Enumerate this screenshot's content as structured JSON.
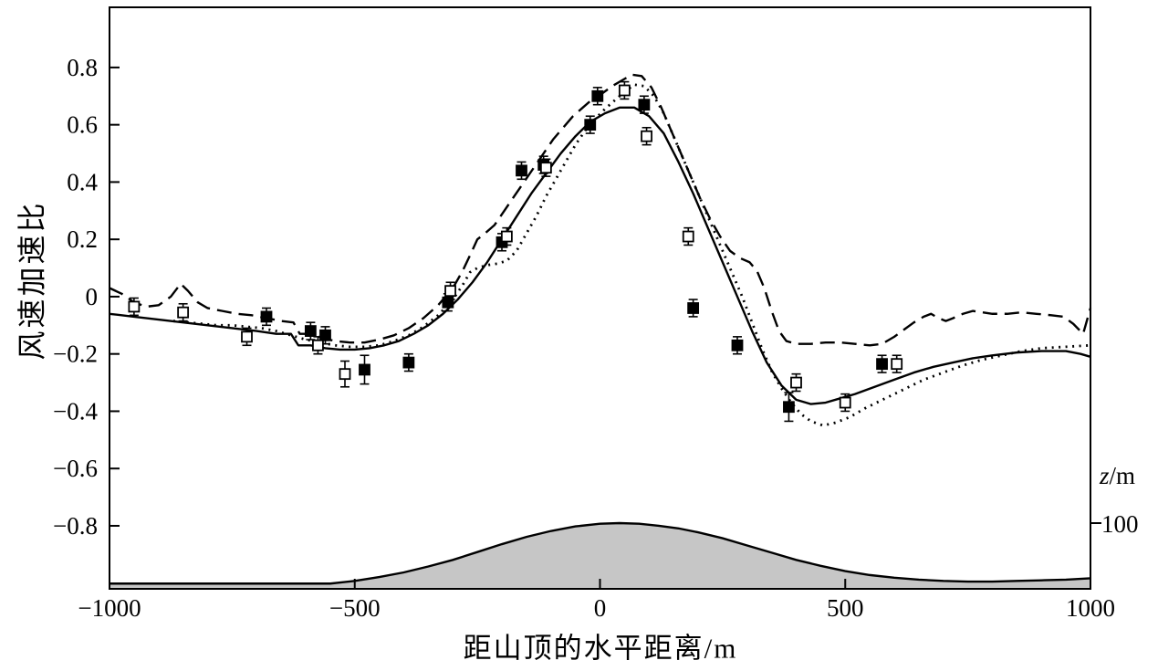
{
  "chart_data": {
    "type": "line",
    "title": "",
    "xlabel": "距山顶的水平距离/m",
    "ylabel": "风速加速比",
    "xlim": [
      -1000,
      1000
    ],
    "ylim": [
      -1.02,
      1.01
    ],
    "grid": false,
    "legend": "none",
    "x_ticks": [
      {
        "value": -1000,
        "label": "−1000"
      },
      {
        "value": -500,
        "label": "−500"
      },
      {
        "value": 0,
        "label": "0"
      },
      {
        "value": 500,
        "label": "500"
      },
      {
        "value": 1000,
        "label": "1000"
      }
    ],
    "y_ticks": [
      {
        "value": 0.8,
        "label": "0.8"
      },
      {
        "value": 0.6,
        "label": "0.6"
      },
      {
        "value": 0.4,
        "label": "0.4"
      },
      {
        "value": 0.2,
        "label": "0.2"
      },
      {
        "value": 0,
        "label": "0"
      },
      {
        "value": -0.2,
        "label": "−0.2"
      },
      {
        "value": -0.4,
        "label": "−0.4"
      },
      {
        "value": -0.6,
        "label": "−0.6"
      },
      {
        "value": -0.8,
        "label": "−0.8"
      }
    ],
    "secondary_axis": {
      "symbol": "z",
      "unit": "/m",
      "ticks": [
        {
          "value": 100,
          "label": "100"
        }
      ]
    },
    "series": [
      {
        "name": "solid-line",
        "type": "line",
        "line_style": "solid",
        "color": "#000000",
        "points": [
          [
            -1000,
            -0.06
          ],
          [
            -950,
            -0.07
          ],
          [
            -900,
            -0.08
          ],
          [
            -850,
            -0.09
          ],
          [
            -800,
            -0.1
          ],
          [
            -750,
            -0.11
          ],
          [
            -700,
            -0.12
          ],
          [
            -660,
            -0.13
          ],
          [
            -630,
            -0.13
          ],
          [
            -615,
            -0.17
          ],
          [
            -590,
            -0.17
          ],
          [
            -560,
            -0.18
          ],
          [
            -530,
            -0.185
          ],
          [
            -500,
            -0.185
          ],
          [
            -470,
            -0.18
          ],
          [
            -440,
            -0.17
          ],
          [
            -410,
            -0.155
          ],
          [
            -380,
            -0.13
          ],
          [
            -350,
            -0.1
          ],
          [
            -320,
            -0.06
          ],
          [
            -290,
            -0.01
          ],
          [
            -260,
            0.05
          ],
          [
            -230,
            0.12
          ],
          [
            -200,
            0.2
          ],
          [
            -170,
            0.28
          ],
          [
            -140,
            0.36
          ],
          [
            -110,
            0.43
          ],
          [
            -80,
            0.5
          ],
          [
            -50,
            0.56
          ],
          [
            -20,
            0.61
          ],
          [
            10,
            0.64
          ],
          [
            40,
            0.66
          ],
          [
            70,
            0.66
          ],
          [
            100,
            0.63
          ],
          [
            130,
            0.57
          ],
          [
            160,
            0.47
          ],
          [
            190,
            0.36
          ],
          [
            220,
            0.24
          ],
          [
            250,
            0.12
          ],
          [
            280,
            0.0
          ],
          [
            310,
            -0.12
          ],
          [
            340,
            -0.23
          ],
          [
            370,
            -0.31
          ],
          [
            400,
            -0.36
          ],
          [
            430,
            -0.375
          ],
          [
            460,
            -0.37
          ],
          [
            490,
            -0.355
          ],
          [
            520,
            -0.34
          ],
          [
            560,
            -0.315
          ],
          [
            600,
            -0.29
          ],
          [
            640,
            -0.265
          ],
          [
            680,
            -0.245
          ],
          [
            720,
            -0.23
          ],
          [
            760,
            -0.215
          ],
          [
            800,
            -0.205
          ],
          [
            850,
            -0.195
          ],
          [
            900,
            -0.19
          ],
          [
            950,
            -0.19
          ],
          [
            980,
            -0.2
          ],
          [
            1000,
            -0.21
          ]
        ]
      },
      {
        "name": "dashed-line",
        "type": "line",
        "line_style": "dashed",
        "color": "#000000",
        "points": [
          [
            -1000,
            0.03
          ],
          [
            -975,
            0.01
          ],
          [
            -950,
            -0.02
          ],
          [
            -925,
            -0.035
          ],
          [
            -900,
            -0.03
          ],
          [
            -875,
            0.0
          ],
          [
            -855,
            0.045
          ],
          [
            -840,
            0.02
          ],
          [
            -820,
            -0.02
          ],
          [
            -800,
            -0.04
          ],
          [
            -770,
            -0.05
          ],
          [
            -740,
            -0.06
          ],
          [
            -710,
            -0.065
          ],
          [
            -680,
            -0.075
          ],
          [
            -650,
            -0.085
          ],
          [
            -625,
            -0.09
          ],
          [
            -612,
            -0.13
          ],
          [
            -590,
            -0.13
          ],
          [
            -565,
            -0.145
          ],
          [
            -540,
            -0.155
          ],
          [
            -510,
            -0.16
          ],
          [
            -480,
            -0.16
          ],
          [
            -450,
            -0.15
          ],
          [
            -420,
            -0.135
          ],
          [
            -390,
            -0.11
          ],
          [
            -360,
            -0.075
          ],
          [
            -330,
            -0.03
          ],
          [
            -300,
            0.03
          ],
          [
            -280,
            0.09
          ],
          [
            -262,
            0.155
          ],
          [
            -250,
            0.2
          ],
          [
            -235,
            0.22
          ],
          [
            -215,
            0.25
          ],
          [
            -195,
            0.3
          ],
          [
            -175,
            0.35
          ],
          [
            -155,
            0.4
          ],
          [
            -135,
            0.45
          ],
          [
            -115,
            0.5
          ],
          [
            -95,
            0.55
          ],
          [
            -75,
            0.59
          ],
          [
            -55,
            0.63
          ],
          [
            -35,
            0.66
          ],
          [
            -15,
            0.69
          ],
          [
            5,
            0.71
          ],
          [
            25,
            0.735
          ],
          [
            45,
            0.755
          ],
          [
            65,
            0.775
          ],
          [
            85,
            0.77
          ],
          [
            105,
            0.73
          ],
          [
            125,
            0.66
          ],
          [
            145,
            0.58
          ],
          [
            165,
            0.5
          ],
          [
            185,
            0.42
          ],
          [
            205,
            0.34
          ],
          [
            225,
            0.27
          ],
          [
            245,
            0.21
          ],
          [
            265,
            0.16
          ],
          [
            285,
            0.135
          ],
          [
            305,
            0.12
          ],
          [
            320,
            0.09
          ],
          [
            335,
            0.03
          ],
          [
            350,
            -0.05
          ],
          [
            365,
            -0.12
          ],
          [
            380,
            -0.155
          ],
          [
            400,
            -0.165
          ],
          [
            430,
            -0.165
          ],
          [
            460,
            -0.16
          ],
          [
            490,
            -0.16
          ],
          [
            520,
            -0.165
          ],
          [
            550,
            -0.17
          ],
          [
            575,
            -0.165
          ],
          [
            600,
            -0.14
          ],
          [
            620,
            -0.115
          ],
          [
            640,
            -0.09
          ],
          [
            660,
            -0.07
          ],
          [
            675,
            -0.06
          ],
          [
            690,
            -0.075
          ],
          [
            705,
            -0.085
          ],
          [
            720,
            -0.075
          ],
          [
            740,
            -0.06
          ],
          [
            760,
            -0.05
          ],
          [
            780,
            -0.055
          ],
          [
            800,
            -0.06
          ],
          [
            830,
            -0.06
          ],
          [
            860,
            -0.055
          ],
          [
            890,
            -0.06
          ],
          [
            920,
            -0.065
          ],
          [
            945,
            -0.07
          ],
          [
            965,
            -0.095
          ],
          [
            985,
            -0.13
          ],
          [
            1000,
            -0.04
          ]
        ]
      },
      {
        "name": "dotted-line",
        "type": "line",
        "line_style": "dotted",
        "color": "#000000",
        "points": [
          [
            -870,
            -0.085
          ],
          [
            -840,
            -0.09
          ],
          [
            -810,
            -0.095
          ],
          [
            -780,
            -0.1
          ],
          [
            -750,
            -0.1
          ],
          [
            -720,
            -0.105
          ],
          [
            -690,
            -0.11
          ],
          [
            -660,
            -0.12
          ],
          [
            -630,
            -0.135
          ],
          [
            -600,
            -0.15
          ],
          [
            -570,
            -0.16
          ],
          [
            -540,
            -0.17
          ],
          [
            -510,
            -0.175
          ],
          [
            -480,
            -0.175
          ],
          [
            -450,
            -0.17
          ],
          [
            -420,
            -0.155
          ],
          [
            -390,
            -0.135
          ],
          [
            -360,
            -0.105
          ],
          [
            -330,
            -0.065
          ],
          [
            -300,
            -0.01
          ],
          [
            -280,
            0.04
          ],
          [
            -265,
            0.085
          ],
          [
            -250,
            0.1
          ],
          [
            -230,
            0.11
          ],
          [
            -210,
            0.115
          ],
          [
            -190,
            0.125
          ],
          [
            -170,
            0.16
          ],
          [
            -150,
            0.22
          ],
          [
            -130,
            0.28
          ],
          [
            -110,
            0.35
          ],
          [
            -90,
            0.41
          ],
          [
            -70,
            0.47
          ],
          [
            -50,
            0.53
          ],
          [
            -30,
            0.58
          ],
          [
            -10,
            0.62
          ],
          [
            10,
            0.655
          ],
          [
            30,
            0.685
          ],
          [
            50,
            0.715
          ],
          [
            70,
            0.74
          ],
          [
            90,
            0.735
          ],
          [
            110,
            0.7
          ],
          [
            130,
            0.64
          ],
          [
            150,
            0.56
          ],
          [
            170,
            0.48
          ],
          [
            190,
            0.4
          ],
          [
            210,
            0.32
          ],
          [
            230,
            0.24
          ],
          [
            250,
            0.16
          ],
          [
            270,
            0.08
          ],
          [
            290,
            0.0
          ],
          [
            310,
            -0.09
          ],
          [
            330,
            -0.18
          ],
          [
            350,
            -0.26
          ],
          [
            370,
            -0.32
          ],
          [
            390,
            -0.37
          ],
          [
            410,
            -0.41
          ],
          [
            430,
            -0.435
          ],
          [
            455,
            -0.45
          ],
          [
            480,
            -0.44
          ],
          [
            510,
            -0.42
          ],
          [
            540,
            -0.39
          ],
          [
            570,
            -0.365
          ],
          [
            600,
            -0.34
          ],
          [
            630,
            -0.315
          ],
          [
            660,
            -0.29
          ],
          [
            700,
            -0.265
          ],
          [
            740,
            -0.24
          ],
          [
            780,
            -0.22
          ],
          [
            820,
            -0.205
          ],
          [
            860,
            -0.19
          ],
          [
            900,
            -0.18
          ],
          [
            950,
            -0.175
          ],
          [
            1000,
            -0.17
          ]
        ]
      },
      {
        "name": "filled-square-markers",
        "type": "scatter",
        "marker": "filled-square",
        "color": "#000000",
        "error": 0.03,
        "points": [
          [
            -680,
            -0.07
          ],
          [
            -590,
            -0.12
          ],
          [
            -560,
            -0.135
          ],
          [
            -480,
            -0.255,
            0.05
          ],
          [
            -390,
            -0.23
          ],
          [
            -310,
            -0.02
          ],
          [
            -200,
            0.19
          ],
          [
            -160,
            0.44
          ],
          [
            -115,
            0.46
          ],
          [
            -20,
            0.6
          ],
          [
            -5,
            0.7
          ],
          [
            90,
            0.67
          ],
          [
            190,
            -0.04
          ],
          [
            280,
            -0.17
          ],
          [
            385,
            -0.385,
            0.05
          ],
          [
            575,
            -0.235
          ]
        ]
      },
      {
        "name": "open-square-markers",
        "type": "scatter",
        "marker": "open-square",
        "color": "#000000",
        "error": 0.03,
        "points": [
          [
            -950,
            -0.035
          ],
          [
            -850,
            -0.055
          ],
          [
            -720,
            -0.14
          ],
          [
            -575,
            -0.17
          ],
          [
            -520,
            -0.27,
            0.045
          ],
          [
            -305,
            0.02
          ],
          [
            -190,
            0.21
          ],
          [
            -110,
            0.45
          ],
          [
            50,
            0.72
          ],
          [
            95,
            0.56
          ],
          [
            180,
            0.21
          ],
          [
            400,
            -0.3
          ],
          [
            500,
            -0.37
          ],
          [
            605,
            -0.235
          ]
        ]
      }
    ],
    "terrain_profile": {
      "description": "hill cross-section, height in metres",
      "fill": "#c6c6c6",
      "peak_height_m": 100,
      "points": [
        [
          -1000,
          8
        ],
        [
          -800,
          8
        ],
        [
          -650,
          8
        ],
        [
          -550,
          8
        ],
        [
          -500,
          12
        ],
        [
          -450,
          18
        ],
        [
          -400,
          25
        ],
        [
          -350,
          34
        ],
        [
          -300,
          44
        ],
        [
          -250,
          56
        ],
        [
          -200,
          68
        ],
        [
          -150,
          79
        ],
        [
          -100,
          88
        ],
        [
          -50,
          95
        ],
        [
          0,
          99
        ],
        [
          40,
          100
        ],
        [
          80,
          99
        ],
        [
          120,
          96
        ],
        [
          160,
          92
        ],
        [
          200,
          86
        ],
        [
          250,
          77
        ],
        [
          300,
          66
        ],
        [
          350,
          55
        ],
        [
          400,
          44
        ],
        [
          450,
          35
        ],
        [
          500,
          27
        ],
        [
          550,
          21
        ],
        [
          600,
          17
        ],
        [
          650,
          14
        ],
        [
          700,
          12
        ],
        [
          750,
          11
        ],
        [
          800,
          11
        ],
        [
          850,
          12
        ],
        [
          900,
          13
        ],
        [
          950,
          14
        ],
        [
          1000,
          16
        ]
      ]
    }
  },
  "colors": {
    "stroke": "#000000",
    "terrain_fill": "#c6c6c6",
    "background": "#ffffff"
  }
}
